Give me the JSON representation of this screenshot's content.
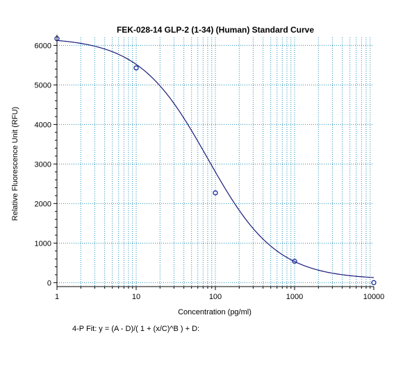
{
  "chart_data": {
    "type": "scatter",
    "title": "FEK-028-14 GLP-2 (1-34) (Human) Standard Curve",
    "xlabel": "Concentration (pg/ml)",
    "ylabel": "Relative Fluorescence Unit (RFU)",
    "x_scale": "log",
    "xlim": [
      1,
      10000
    ],
    "ylim": [
      -100,
      6200
    ],
    "x_ticks": [
      1,
      10,
      100,
      1000,
      10000
    ],
    "x_tick_labels": [
      "1",
      "10",
      "100",
      "1000",
      "10000"
    ],
    "y_ticks": [
      0,
      1000,
      2000,
      3000,
      4000,
      5000,
      6000
    ],
    "y_tick_labels": [
      "0",
      "1000",
      "2000",
      "3000",
      "4000",
      "5000",
      "6000"
    ],
    "grid": true,
    "series": [
      {
        "kind": "points",
        "x": [
          1,
          10,
          100,
          1000,
          10000
        ],
        "y": [
          6170,
          5430,
          2270,
          540,
          0
        ]
      },
      {
        "kind": "fit-curve",
        "model": "4PL",
        "params": {
          "A": 6200,
          "B": 1.0,
          "C": 80,
          "D": 80
        }
      }
    ],
    "footnote": "4-P Fit: y = (A - D)/( 1 + (x/C)^B ) + D:"
  },
  "colors": {
    "grid": "#1e8cb4",
    "curve": "#1a1a7a",
    "points": "#1a2a9a",
    "axis": "#000000"
  }
}
